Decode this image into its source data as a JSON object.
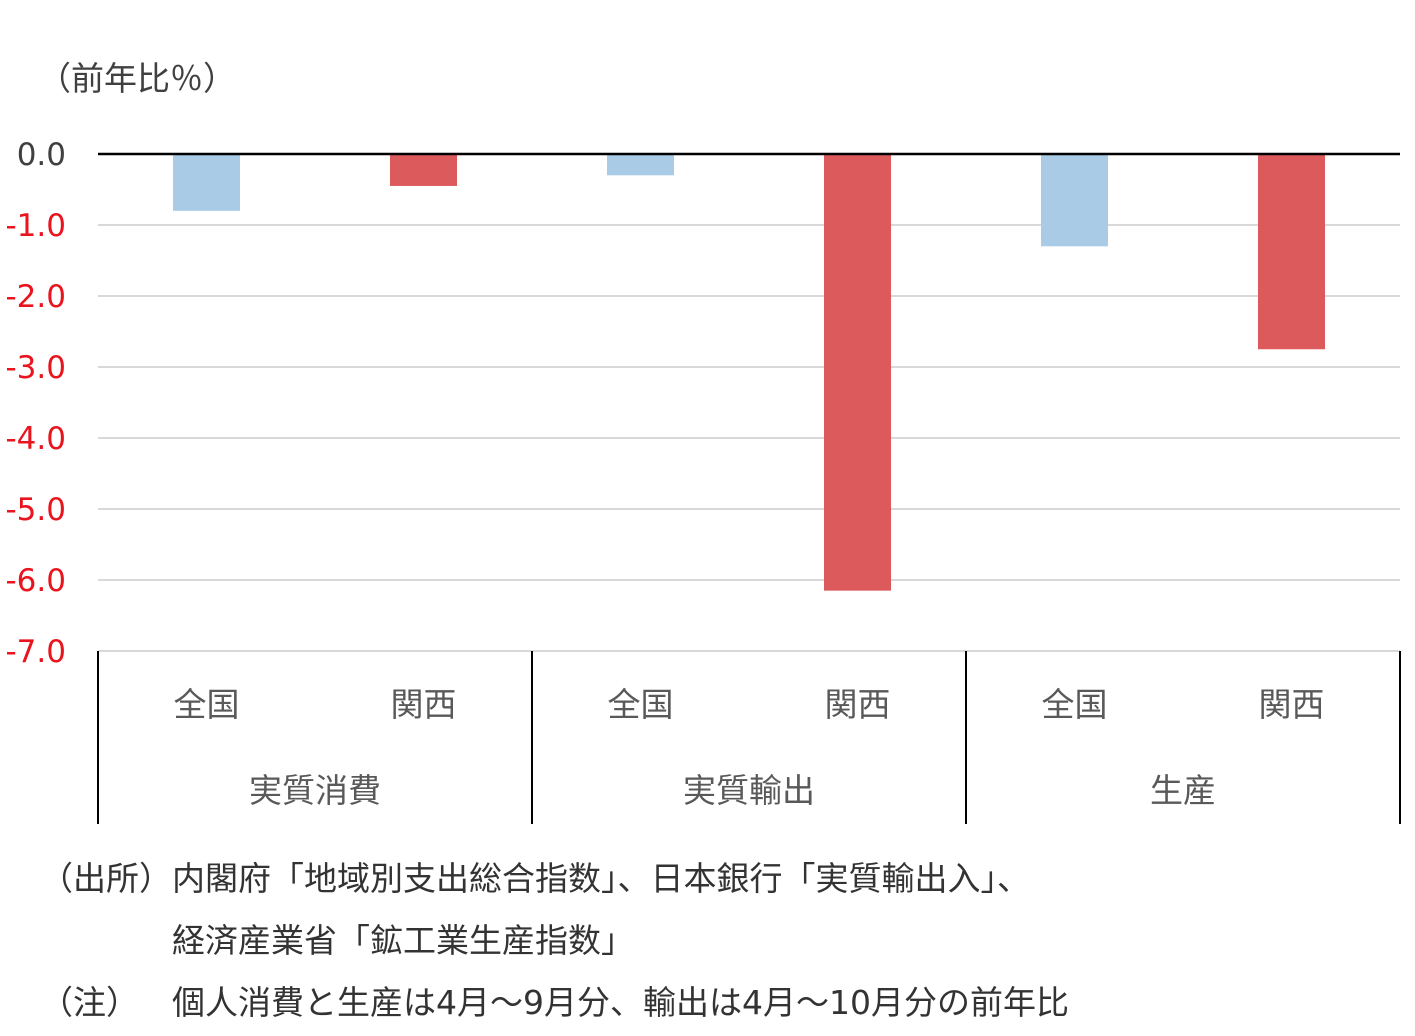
{
  "chart_data": {
    "type": "bar",
    "ylabel": "（前年比％）",
    "ylim": [
      -7.0,
      0.0
    ],
    "yticks": [
      "0.0",
      "-1.0",
      "-2.0",
      "-3.0",
      "-4.0",
      "-5.0",
      "-6.0",
      "-7.0"
    ],
    "grid": true,
    "groups": [
      {
        "label": "実質消費",
        "bars": [
          {
            "label": "全国",
            "value": -0.8
          },
          {
            "label": "関西",
            "value": -0.45
          }
        ]
      },
      {
        "label": "実質輸出",
        "bars": [
          {
            "label": "全国",
            "value": -0.3
          },
          {
            "label": "関西",
            "value": -6.15
          }
        ]
      },
      {
        "label": "生産",
        "bars": [
          {
            "label": "全国",
            "value": -1.3
          },
          {
            "label": "関西",
            "value": -2.75
          }
        ]
      }
    ],
    "colors": {
      "全国": "#a9cbe6",
      "関西": "#dc5a5c",
      "negative_tick": "#e8141e",
      "zero_tick": "#404040"
    }
  },
  "notes": {
    "source_label": "（出所）",
    "source_line1": "内閣府「地域別支出総合指数」、日本銀行「実質輸出入」、",
    "source_line2": "経済産業省「鉱工業生産指数」",
    "note_label": "（注）",
    "note_text": "個人消費と生産は4月～9月分、輸出は4月～10月分の前年比"
  }
}
